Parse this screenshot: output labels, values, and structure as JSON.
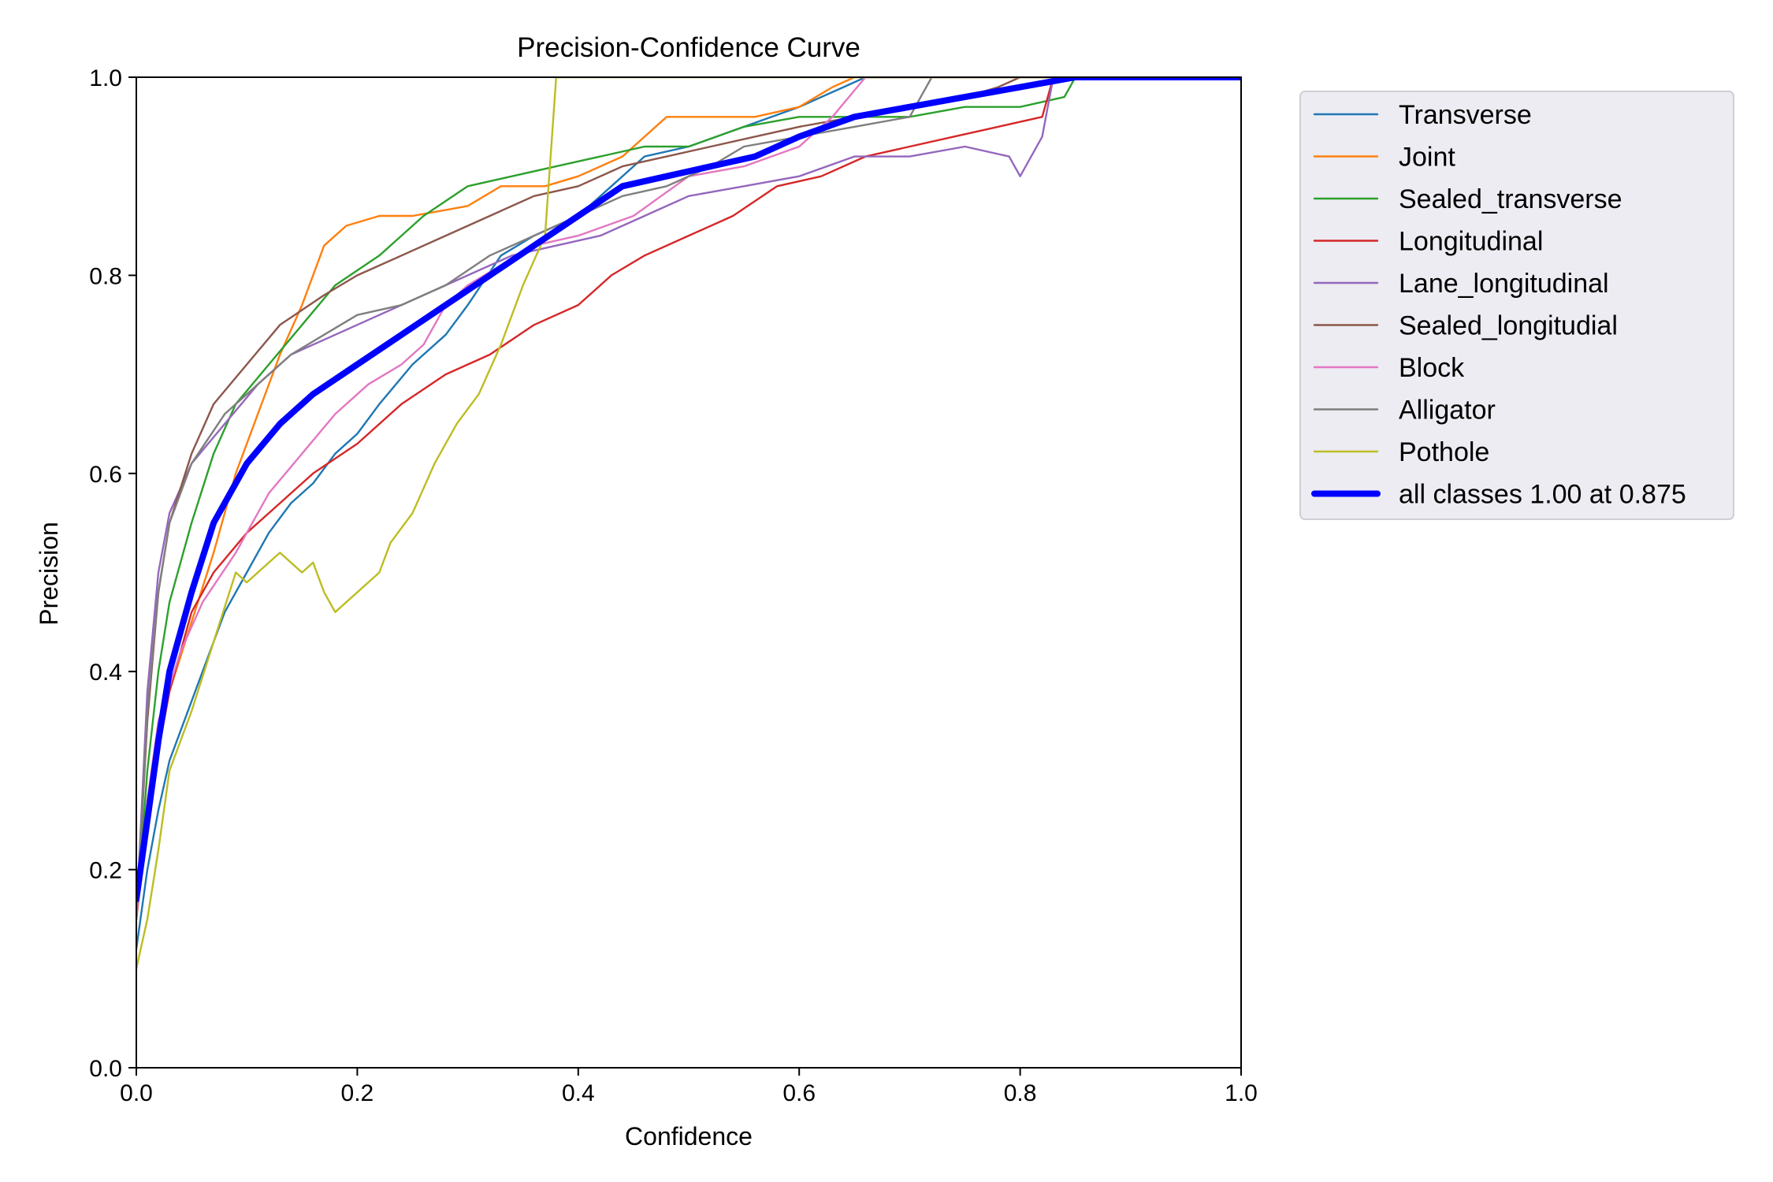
{
  "chart_data": {
    "type": "line",
    "title": "Precision-Confidence Curve",
    "xlabel": "Confidence",
    "ylabel": "Precision",
    "xlim": [
      0,
      1
    ],
    "ylim": [
      0,
      1
    ],
    "xticks": [
      "0.0",
      "0.2",
      "0.4",
      "0.6",
      "0.8",
      "1.0"
    ],
    "yticks": [
      "0.0",
      "0.2",
      "0.4",
      "0.6",
      "0.8",
      "1.0"
    ],
    "grid": false,
    "legend": "outside-right",
    "series": [
      {
        "name": "Transverse",
        "color": "#1f77b4",
        "bold": false,
        "points": [
          [
            0,
            0.12
          ],
          [
            0.01,
            0.2
          ],
          [
            0.02,
            0.26
          ],
          [
            0.03,
            0.31
          ],
          [
            0.04,
            0.34
          ],
          [
            0.05,
            0.37
          ],
          [
            0.06,
            0.4
          ],
          [
            0.07,
            0.43
          ],
          [
            0.08,
            0.46
          ],
          [
            0.1,
            0.5
          ],
          [
            0.12,
            0.54
          ],
          [
            0.14,
            0.57
          ],
          [
            0.16,
            0.59
          ],
          [
            0.18,
            0.62
          ],
          [
            0.2,
            0.64
          ],
          [
            0.22,
            0.67
          ],
          [
            0.25,
            0.71
          ],
          [
            0.28,
            0.74
          ],
          [
            0.3,
            0.77
          ],
          [
            0.33,
            0.82
          ],
          [
            0.36,
            0.84
          ],
          [
            0.4,
            0.86
          ],
          [
            0.43,
            0.89
          ],
          [
            0.46,
            0.92
          ],
          [
            0.5,
            0.93
          ],
          [
            0.55,
            0.95
          ],
          [
            0.6,
            0.97
          ],
          [
            0.64,
            0.99
          ],
          [
            0.66,
            1.0
          ],
          [
            1.0,
            1.0
          ]
        ]
      },
      {
        "name": "Joint",
        "color": "#ff7f0e",
        "bold": false,
        "points": [
          [
            0,
            0.15
          ],
          [
            0.01,
            0.25
          ],
          [
            0.02,
            0.32
          ],
          [
            0.03,
            0.38
          ],
          [
            0.05,
            0.45
          ],
          [
            0.07,
            0.52
          ],
          [
            0.09,
            0.6
          ],
          [
            0.11,
            0.66
          ],
          [
            0.13,
            0.72
          ],
          [
            0.15,
            0.77
          ],
          [
            0.17,
            0.83
          ],
          [
            0.19,
            0.85
          ],
          [
            0.22,
            0.86
          ],
          [
            0.25,
            0.86
          ],
          [
            0.3,
            0.87
          ],
          [
            0.33,
            0.89
          ],
          [
            0.37,
            0.89
          ],
          [
            0.4,
            0.9
          ],
          [
            0.44,
            0.92
          ],
          [
            0.48,
            0.96
          ],
          [
            0.52,
            0.96
          ],
          [
            0.56,
            0.96
          ],
          [
            0.6,
            0.97
          ],
          [
            0.63,
            0.99
          ],
          [
            0.65,
            1.0
          ],
          [
            1.0,
            1.0
          ]
        ]
      },
      {
        "name": "Sealed_transverse",
        "color": "#2ca02c",
        "bold": false,
        "points": [
          [
            0,
            0.15
          ],
          [
            0.01,
            0.3
          ],
          [
            0.02,
            0.4
          ],
          [
            0.03,
            0.47
          ],
          [
            0.05,
            0.55
          ],
          [
            0.07,
            0.62
          ],
          [
            0.09,
            0.67
          ],
          [
            0.12,
            0.71
          ],
          [
            0.15,
            0.75
          ],
          [
            0.18,
            0.79
          ],
          [
            0.22,
            0.82
          ],
          [
            0.26,
            0.86
          ],
          [
            0.3,
            0.89
          ],
          [
            0.34,
            0.9
          ],
          [
            0.38,
            0.91
          ],
          [
            0.42,
            0.92
          ],
          [
            0.46,
            0.93
          ],
          [
            0.5,
            0.93
          ],
          [
            0.55,
            0.95
          ],
          [
            0.6,
            0.96
          ],
          [
            0.65,
            0.96
          ],
          [
            0.7,
            0.96
          ],
          [
            0.75,
            0.97
          ],
          [
            0.8,
            0.97
          ],
          [
            0.84,
            0.98
          ],
          [
            0.85,
            1.0
          ],
          [
            1.0,
            1.0
          ]
        ]
      },
      {
        "name": "Longitudinal",
        "color": "#d62728",
        "bold": false,
        "points": [
          [
            0,
            0.15
          ],
          [
            0.01,
            0.25
          ],
          [
            0.02,
            0.32
          ],
          [
            0.03,
            0.38
          ],
          [
            0.05,
            0.46
          ],
          [
            0.07,
            0.5
          ],
          [
            0.1,
            0.54
          ],
          [
            0.13,
            0.57
          ],
          [
            0.16,
            0.6
          ],
          [
            0.2,
            0.63
          ],
          [
            0.24,
            0.67
          ],
          [
            0.28,
            0.7
          ],
          [
            0.32,
            0.72
          ],
          [
            0.36,
            0.75
          ],
          [
            0.4,
            0.77
          ],
          [
            0.43,
            0.8
          ],
          [
            0.46,
            0.82
          ],
          [
            0.5,
            0.84
          ],
          [
            0.54,
            0.86
          ],
          [
            0.58,
            0.89
          ],
          [
            0.62,
            0.9
          ],
          [
            0.66,
            0.92
          ],
          [
            0.7,
            0.93
          ],
          [
            0.74,
            0.94
          ],
          [
            0.78,
            0.95
          ],
          [
            0.82,
            0.96
          ],
          [
            0.83,
            1.0
          ],
          [
            1.0,
            1.0
          ]
        ]
      },
      {
        "name": "Lane_longitudinal",
        "color": "#9467bd",
        "bold": false,
        "points": [
          [
            0,
            0.15
          ],
          [
            0.01,
            0.38
          ],
          [
            0.02,
            0.5
          ],
          [
            0.03,
            0.56
          ],
          [
            0.05,
            0.61
          ],
          [
            0.08,
            0.65
          ],
          [
            0.11,
            0.69
          ],
          [
            0.14,
            0.72
          ],
          [
            0.18,
            0.74
          ],
          [
            0.22,
            0.76
          ],
          [
            0.26,
            0.78
          ],
          [
            0.3,
            0.8
          ],
          [
            0.34,
            0.82
          ],
          [
            0.38,
            0.83
          ],
          [
            0.42,
            0.84
          ],
          [
            0.46,
            0.86
          ],
          [
            0.5,
            0.88
          ],
          [
            0.55,
            0.89
          ],
          [
            0.6,
            0.9
          ],
          [
            0.65,
            0.92
          ],
          [
            0.7,
            0.92
          ],
          [
            0.75,
            0.93
          ],
          [
            0.79,
            0.92
          ],
          [
            0.8,
            0.9
          ],
          [
            0.82,
            0.94
          ],
          [
            0.83,
            1.0
          ],
          [
            1.0,
            1.0
          ]
        ]
      },
      {
        "name": "Sealed_longitudial",
        "color": "#8c564b",
        "bold": false,
        "points": [
          [
            0,
            0.15
          ],
          [
            0.01,
            0.35
          ],
          [
            0.02,
            0.48
          ],
          [
            0.03,
            0.55
          ],
          [
            0.05,
            0.62
          ],
          [
            0.07,
            0.67
          ],
          [
            0.1,
            0.71
          ],
          [
            0.13,
            0.75
          ],
          [
            0.17,
            0.78
          ],
          [
            0.2,
            0.8
          ],
          [
            0.24,
            0.82
          ],
          [
            0.28,
            0.84
          ],
          [
            0.32,
            0.86
          ],
          [
            0.36,
            0.88
          ],
          [
            0.4,
            0.89
          ],
          [
            0.44,
            0.91
          ],
          [
            0.48,
            0.92
          ],
          [
            0.52,
            0.93
          ],
          [
            0.56,
            0.94
          ],
          [
            0.6,
            0.95
          ],
          [
            0.65,
            0.96
          ],
          [
            0.7,
            0.97
          ],
          [
            0.75,
            0.98
          ],
          [
            0.78,
            0.99
          ],
          [
            0.8,
            1.0
          ],
          [
            1.0,
            1.0
          ]
        ]
      },
      {
        "name": "Block",
        "color": "#e377c2",
        "bold": false,
        "points": [
          [
            0,
            0.15
          ],
          [
            0.01,
            0.27
          ],
          [
            0.02,
            0.35
          ],
          [
            0.04,
            0.42
          ],
          [
            0.06,
            0.47
          ],
          [
            0.09,
            0.52
          ],
          [
            0.12,
            0.58
          ],
          [
            0.15,
            0.62
          ],
          [
            0.18,
            0.66
          ],
          [
            0.21,
            0.69
          ],
          [
            0.24,
            0.71
          ],
          [
            0.26,
            0.73
          ],
          [
            0.28,
            0.77
          ],
          [
            0.3,
            0.79
          ],
          [
            0.33,
            0.81
          ],
          [
            0.36,
            0.83
          ],
          [
            0.4,
            0.84
          ],
          [
            0.45,
            0.86
          ],
          [
            0.5,
            0.9
          ],
          [
            0.55,
            0.91
          ],
          [
            0.6,
            0.93
          ],
          [
            0.63,
            0.96
          ],
          [
            0.66,
            1.0
          ],
          [
            1.0,
            1.0
          ]
        ]
      },
      {
        "name": "Alligator",
        "color": "#7f7f7f",
        "bold": false,
        "points": [
          [
            0,
            0.15
          ],
          [
            0.01,
            0.36
          ],
          [
            0.02,
            0.48
          ],
          [
            0.03,
            0.55
          ],
          [
            0.05,
            0.61
          ],
          [
            0.08,
            0.66
          ],
          [
            0.11,
            0.69
          ],
          [
            0.14,
            0.72
          ],
          [
            0.17,
            0.74
          ],
          [
            0.2,
            0.76
          ],
          [
            0.24,
            0.77
          ],
          [
            0.28,
            0.79
          ],
          [
            0.32,
            0.82
          ],
          [
            0.36,
            0.84
          ],
          [
            0.4,
            0.86
          ],
          [
            0.44,
            0.88
          ],
          [
            0.48,
            0.89
          ],
          [
            0.52,
            0.91
          ],
          [
            0.55,
            0.93
          ],
          [
            0.6,
            0.94
          ],
          [
            0.65,
            0.95
          ],
          [
            0.7,
            0.96
          ],
          [
            0.72,
            1.0
          ],
          [
            1.0,
            1.0
          ]
        ]
      },
      {
        "name": "Pothole",
        "color": "#bcbd22",
        "bold": false,
        "points": [
          [
            0,
            0.1
          ],
          [
            0.01,
            0.15
          ],
          [
            0.02,
            0.22
          ],
          [
            0.03,
            0.3
          ],
          [
            0.05,
            0.36
          ],
          [
            0.07,
            0.43
          ],
          [
            0.09,
            0.5
          ],
          [
            0.1,
            0.49
          ],
          [
            0.12,
            0.51
          ],
          [
            0.13,
            0.52
          ],
          [
            0.15,
            0.5
          ],
          [
            0.16,
            0.51
          ],
          [
            0.17,
            0.48
          ],
          [
            0.18,
            0.46
          ],
          [
            0.2,
            0.48
          ],
          [
            0.22,
            0.5
          ],
          [
            0.23,
            0.53
          ],
          [
            0.25,
            0.56
          ],
          [
            0.27,
            0.61
          ],
          [
            0.29,
            0.65
          ],
          [
            0.31,
            0.68
          ],
          [
            0.33,
            0.73
          ],
          [
            0.35,
            0.79
          ],
          [
            0.37,
            0.84
          ],
          [
            0.38,
            1.0
          ],
          [
            0.39,
            1.0
          ],
          [
            1.0,
            1.0
          ]
        ]
      },
      {
        "name": "all classes 1.00 at 0.875",
        "color": "#0000ff",
        "bold": true,
        "points": [
          [
            0,
            0.17
          ],
          [
            0.01,
            0.25
          ],
          [
            0.02,
            0.33
          ],
          [
            0.03,
            0.4
          ],
          [
            0.05,
            0.48
          ],
          [
            0.07,
            0.55
          ],
          [
            0.1,
            0.61
          ],
          [
            0.13,
            0.65
          ],
          [
            0.16,
            0.68
          ],
          [
            0.2,
            0.71
          ],
          [
            0.24,
            0.74
          ],
          [
            0.28,
            0.77
          ],
          [
            0.32,
            0.8
          ],
          [
            0.36,
            0.83
          ],
          [
            0.4,
            0.86
          ],
          [
            0.44,
            0.89
          ],
          [
            0.48,
            0.9
          ],
          [
            0.52,
            0.91
          ],
          [
            0.56,
            0.92
          ],
          [
            0.6,
            0.94
          ],
          [
            0.65,
            0.96
          ],
          [
            0.7,
            0.97
          ],
          [
            0.75,
            0.98
          ],
          [
            0.8,
            0.99
          ],
          [
            0.85,
            1.0
          ],
          [
            0.875,
            1.0
          ],
          [
            1.0,
            1.0
          ]
        ]
      }
    ]
  }
}
